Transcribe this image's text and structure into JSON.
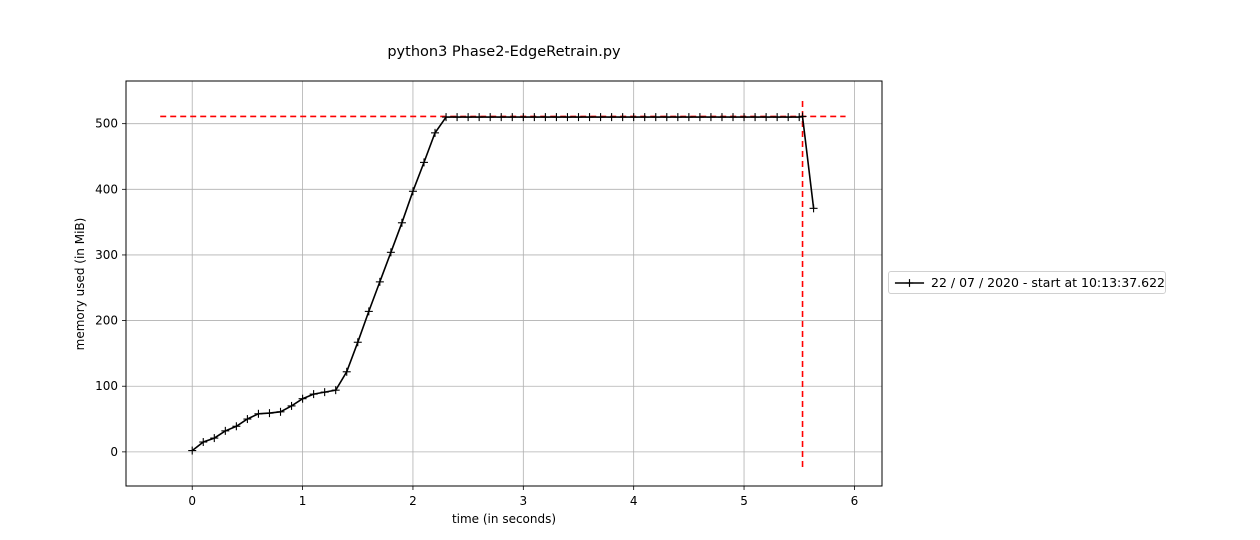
{
  "chart_data": {
    "type": "line",
    "title": "python3 Phase2-EdgeRetrain.py",
    "xlabel": "time (in seconds)",
    "ylabel": "memory used (in MiB)",
    "xlim": [
      -0.6,
      6.25
    ],
    "ylim": [
      -52,
      565
    ],
    "xticks": [
      0,
      1,
      2,
      3,
      4,
      5,
      6
    ],
    "yticks": [
      0,
      100,
      200,
      300,
      400,
      500
    ],
    "grid": true,
    "legend_position": "right, outside plot",
    "series": [
      {
        "name": "22 / 07 / 2020 - start at 10:13:37.622",
        "color": "#000000",
        "marker": "+",
        "x": [
          0.0,
          0.1,
          0.2,
          0.3,
          0.4,
          0.5,
          0.6,
          0.7,
          0.8,
          0.9,
          1.0,
          1.1,
          1.2,
          1.3,
          1.4,
          1.5,
          1.6,
          1.7,
          1.8,
          1.9,
          2.0,
          2.1,
          2.2,
          2.3,
          2.4,
          2.5,
          2.6,
          2.7,
          2.8,
          2.9,
          3.0,
          3.1,
          3.2,
          3.3,
          3.4,
          3.5,
          3.6,
          3.7,
          3.8,
          3.9,
          4.0,
          4.1,
          4.2,
          4.3,
          4.4,
          4.5,
          4.6,
          4.7,
          4.8,
          4.9,
          5.0,
          5.1,
          5.2,
          5.3,
          5.4,
          5.5,
          5.53,
          5.63
        ],
        "y": [
          2,
          15,
          21,
          32,
          39,
          50,
          58,
          59,
          61,
          70,
          81,
          88,
          91,
          94,
          122,
          167,
          214,
          259,
          304,
          349,
          397,
          441,
          486,
          510,
          510,
          510,
          510,
          510,
          510,
          510,
          510,
          510,
          510,
          510,
          510,
          510,
          510,
          510,
          510,
          510,
          510,
          510,
          510,
          510,
          510,
          510,
          510,
          510,
          510,
          510,
          510,
          510,
          510,
          510,
          510,
          510,
          511,
          371
        ]
      }
    ],
    "reference_lines": [
      {
        "orientation": "horizontal",
        "y": 511,
        "x_from": -0.29,
        "x_to": 5.92,
        "color": "#ff0000",
        "style": "dashed"
      },
      {
        "orientation": "vertical",
        "x": 5.53,
        "y_from": -23,
        "y_to": 537,
        "color": "#ff0000",
        "style": "dashed"
      }
    ]
  }
}
